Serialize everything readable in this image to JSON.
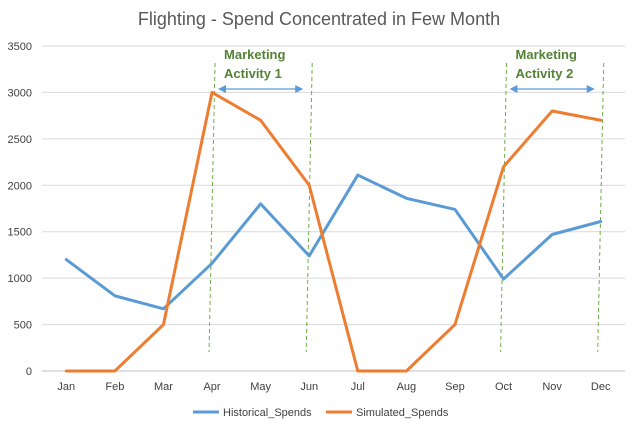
{
  "chart_data": {
    "type": "line",
    "title": "Flighting - Spend Concentrated in Few Month",
    "categories": [
      "Jan",
      "Feb",
      "Mar",
      "Apr",
      "May",
      "Jun",
      "Jul",
      "Aug",
      "Sep",
      "Oct",
      "Nov",
      "Dec"
    ],
    "ylim": [
      0,
      3500
    ],
    "yticks": [
      0,
      500,
      1000,
      1500,
      2000,
      2500,
      3000,
      3500
    ],
    "grid": true,
    "legend": "bottom",
    "series": [
      {
        "name": "Historical_Spends",
        "color": "#5B9BD5",
        "values": [
          1200,
          810,
          670,
          1160,
          1800,
          1240,
          2110,
          1860,
          1740,
          990,
          1470,
          1610
        ]
      },
      {
        "name": "Simulated_Spends",
        "color": "#ED7D31",
        "values": [
          0,
          0,
          500,
          3000,
          2700,
          2000,
          0,
          0,
          500,
          2200,
          2800,
          2700
        ]
      }
    ],
    "annotations": [
      {
        "line1": "Marketing",
        "line2": "Activity 1",
        "start": "Apr",
        "end": "Jun",
        "color": "#548235"
      },
      {
        "line1": "Marketing",
        "line2": "Activity 2",
        "start": "Oct",
        "end": "Dec",
        "color": "#548235"
      }
    ],
    "arrow_color": "#5B9BD5",
    "marker_line_color": "#70AD47"
  }
}
